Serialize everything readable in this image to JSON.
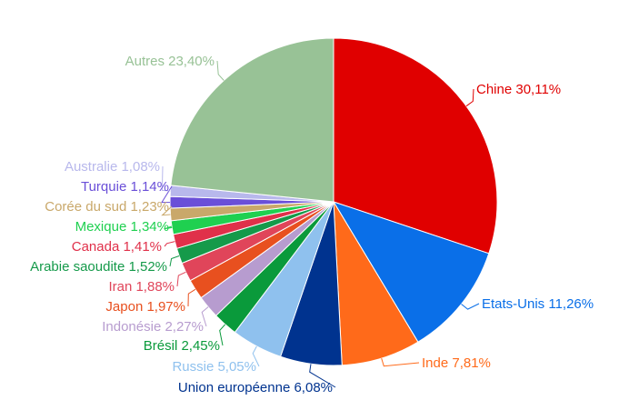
{
  "chart_data": {
    "type": "pie",
    "title": "",
    "slices": [
      {
        "name": "Chine",
        "value": 30.11,
        "label": "Chine 30,11%",
        "color": "#e00000"
      },
      {
        "name": "Etats-Unis",
        "value": 11.26,
        "label": "Etats-Unis 11,26%",
        "color": "#0a6fe8"
      },
      {
        "name": "Inde",
        "value": 7.81,
        "label": "Inde 7,81%",
        "color": "#ff6a1a"
      },
      {
        "name": "Union européenne",
        "value": 6.08,
        "label": "Union européenne 6,08%",
        "color": "#00338f"
      },
      {
        "name": "Russie",
        "value": 5.05,
        "label": "Russie 5,05%",
        "color": "#8fc1ee"
      },
      {
        "name": "Brésil",
        "value": 2.45,
        "label": "Brésil 2,45%",
        "color": "#0a9a3b"
      },
      {
        "name": "Indonésie",
        "value": 2.27,
        "label": "Indonésie 2,27%",
        "color": "#b79ccf"
      },
      {
        "name": "Japon",
        "value": 1.97,
        "label": "Japon 1,97%",
        "color": "#e8501f"
      },
      {
        "name": "Iran",
        "value": 1.88,
        "label": "Iran 1,88%",
        "color": "#e0455a"
      },
      {
        "name": "Arabie saoudite",
        "value": 1.52,
        "label": "Arabie saoudite 1,52%",
        "color": "#159a4a"
      },
      {
        "name": "Canada",
        "value": 1.41,
        "label": "Canada 1,41%",
        "color": "#e0304a"
      },
      {
        "name": "Mexique",
        "value": 1.34,
        "label": "Mexique 1,34%",
        "color": "#1fd050"
      },
      {
        "name": "Corée du sud",
        "value": 1.23,
        "label": "Corée du sud 1,23%",
        "color": "#c9a86a"
      },
      {
        "name": "Turquie",
        "value": 1.14,
        "label": "Turquie 1,14%",
        "color": "#6a4fd8"
      },
      {
        "name": "Australie",
        "value": 1.08,
        "label": "Australie 1,08%",
        "color": "#b8b8ec"
      },
      {
        "name": "Autres",
        "value": 23.4,
        "label": "Autres 23,40%",
        "color": "#98c296"
      }
    ]
  }
}
